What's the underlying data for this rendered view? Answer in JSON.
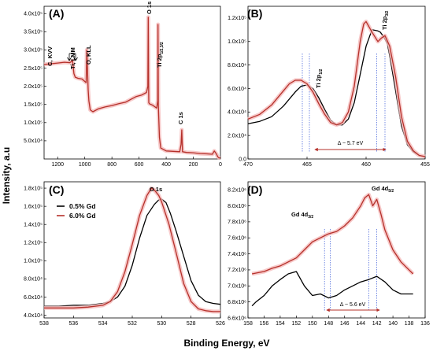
{
  "figure": {
    "ylabel": "Intensity, a.u",
    "xlabel": "Binding Energy, eV",
    "colors": {
      "gd05": "#000000",
      "gd60": "#b5302a",
      "highlight": "#f5bcbc",
      "marker": "#1a3fd1"
    }
  },
  "legend": {
    "items": [
      "0.5% Gd",
      "6.0% Gd"
    ]
  },
  "chart_data": [
    {
      "panel": "(A)",
      "type": "line",
      "xlim": [
        1300,
        0
      ],
      "ylim": [
        0,
        420000
      ],
      "xticks": [
        1200,
        1000,
        800,
        600,
        400,
        200,
        0
      ],
      "yticks": [
        50000,
        100000,
        150000,
        200000,
        250000,
        300000,
        350000,
        400000
      ],
      "ytick_labels": [
        "5.0x10⁴",
        "1.0x10⁵",
        "1.5x10⁵",
        "2.0x10⁵",
        "2.5x10⁵",
        "3.0x10⁵",
        "3.5x10⁵",
        "4.0x10⁵"
      ],
      "series": [
        {
          "name": "6.0% Gd",
          "x": [
            1300,
            1250,
            1200,
            1150,
            1110,
            1090,
            1080,
            1070,
            1050,
            1020,
            990,
            985,
            975,
            970,
            960,
            940,
            900,
            850,
            800,
            750,
            700,
            660,
            620,
            580,
            545,
            535,
            532,
            530,
            528,
            524,
            500,
            470,
            462,
            460,
            458,
            450,
            440,
            400,
            350,
            300,
            290,
            285,
            280,
            250,
            200,
            150,
            100,
            60,
            45,
            30,
            20,
            10,
            0
          ],
          "y": [
            260000,
            262000,
            264000,
            266000,
            265000,
            270000,
            235000,
            225000,
            222000,
            220000,
            210000,
            300000,
            190000,
            160000,
            135000,
            130000,
            138000,
            143000,
            147000,
            152000,
            156000,
            164000,
            172000,
            176000,
            183000,
            200000,
            390000,
            215000,
            155000,
            152000,
            148000,
            140000,
            160000,
            370000,
            150000,
            60000,
            30000,
            22000,
            21000,
            20000,
            40000,
            80000,
            20000,
            18000,
            17000,
            15000,
            14000,
            13000,
            22000,
            14000,
            6000,
            3000,
            3000
          ]
        }
      ],
      "annotations": [
        "C, KVV",
        "Ti, LMM",
        "O, KLL",
        "O 1s",
        "Ti 2p1/2,3/2",
        "C 1s"
      ]
    },
    {
      "panel": "(B)",
      "type": "line",
      "xlim": [
        470,
        455
      ],
      "ylim": [
        0,
        130000
      ],
      "xticks": [
        470,
        465,
        460,
        455
      ],
      "yticks": [
        0,
        20000,
        40000,
        60000,
        80000,
        100000,
        120000
      ],
      "ytick_labels": [
        "0.0",
        "2.0x10⁴",
        "4.0x10⁴",
        "6.0x10⁴",
        "8.0x10⁴",
        "1.0x10⁵",
        "1.2x10⁵"
      ],
      "series": [
        {
          "name": "0.5% Gd",
          "x": [
            470,
            469,
            468,
            467,
            466,
            465.5,
            465,
            464.5,
            464,
            463.5,
            463,
            462.5,
            462,
            461.5,
            461,
            460.5,
            460,
            459.5,
            459,
            458.8,
            458.5,
            458.2,
            458,
            457.5,
            457,
            456.5,
            456,
            455.5,
            455
          ],
          "y": [
            30000,
            32000,
            36000,
            45000,
            57000,
            62000,
            63000,
            60000,
            52000,
            42000,
            33000,
            29000,
            29000,
            34000,
            48000,
            72000,
            96000,
            110000,
            109000,
            108000,
            104000,
            98000,
            88000,
            58000,
            28000,
            12000,
            6000,
            3000,
            2000
          ]
        },
        {
          "name": "6.0% Gd",
          "x": [
            470,
            469,
            468,
            467,
            466.5,
            466,
            465.5,
            465,
            464.5,
            464,
            463.5,
            463,
            462.5,
            462,
            461.5,
            461,
            460.5,
            460.2,
            460,
            459.5,
            459,
            458.7,
            458.4,
            458,
            457.5,
            457,
            456.5,
            456,
            455.5,
            455
          ],
          "y": [
            34000,
            38000,
            46000,
            58000,
            64000,
            67000,
            67000,
            64000,
            57000,
            47000,
            38000,
            31000,
            29000,
            31000,
            40000,
            62000,
            100000,
            115000,
            117000,
            108000,
            100000,
            103000,
            105000,
            96000,
            70000,
            36000,
            15000,
            7000,
            3000,
            2000
          ]
        }
      ],
      "annotations": [
        "Ti 2p1/2",
        "Ti 2p3/2",
        "Δ ~ 5.7 eV"
      ]
    },
    {
      "panel": "(C)",
      "type": "line",
      "xlim": [
        538,
        526
      ],
      "ylim": [
        37000,
        187000
      ],
      "xticks": [
        538,
        536,
        534,
        532,
        530,
        528,
        526
      ],
      "yticks": [
        40000,
        60000,
        80000,
        100000,
        120000,
        140000,
        160000,
        180000
      ],
      "ytick_labels": [
        "4.0x10⁴",
        "6.0x10⁴",
        "8.0x10⁴",
        "1.0x10⁵",
        "1.2x10⁵",
        "1.4x10⁵",
        "1.6x10⁵",
        "1.8x10⁵"
      ],
      "series": [
        {
          "name": "0.5% Gd",
          "x": [
            538,
            537,
            536,
            535,
            534,
            533.5,
            533,
            532.5,
            532,
            531.5,
            531,
            530.5,
            530.2,
            530,
            529.7,
            529.4,
            529,
            528.5,
            528,
            527.5,
            527,
            526.5,
            526
          ],
          "y": [
            50000,
            50000,
            51000,
            51000,
            53000,
            55000,
            60000,
            72000,
            95000,
            125000,
            150000,
            162000,
            167000,
            168000,
            164000,
            152000,
            132000,
            105000,
            78000,
            62000,
            55000,
            53000,
            52000
          ]
        },
        {
          "name": "6.0% Gd",
          "x": [
            538,
            537,
            536,
            535,
            534,
            533.5,
            533,
            532.5,
            532,
            531.5,
            531,
            530.7,
            530.5,
            530.2,
            530,
            529.5,
            529,
            528.5,
            528,
            527.5,
            527,
            526.5,
            526
          ],
          "y": [
            48000,
            48000,
            48000,
            49000,
            51000,
            55000,
            66000,
            88000,
            118000,
            150000,
            172000,
            180000,
            178000,
            172000,
            165000,
            140000,
            108000,
            75000,
            55000,
            47000,
            45000,
            44000,
            44000
          ]
        }
      ],
      "annotations": [
        "O 1s"
      ]
    },
    {
      "panel": "(D)",
      "type": "line",
      "xlim": [
        158,
        136
      ],
      "ylim": [
        6600000,
        8300000
      ],
      "xticks": [
        158,
        156,
        154,
        152,
        150,
        148,
        146,
        144,
        142,
        140,
        138,
        136
      ],
      "yticks": [
        6600000,
        6800000,
        7000000,
        7200000,
        7400000,
        7600000,
        7800000,
        8000000,
        8200000
      ],
      "ytick_labels": [
        "6.6x10⁶",
        "6.8x10⁶",
        "7.0x10⁶",
        "7.2x10⁶",
        "7.4x10⁶",
        "7.6x10⁶",
        "7.8x10⁶",
        "8.0x10⁶",
        "8.2x10⁶"
      ],
      "series": [
        {
          "name": "0.5% Gd",
          "x": [
            157.5,
            157,
            156,
            155,
            154,
            153,
            152,
            151,
            150,
            149,
            148,
            147,
            146,
            145,
            144,
            143,
            142,
            141,
            140,
            139,
            138,
            137.5
          ],
          "y": [
            6750000,
            6800000,
            6880000,
            7000000,
            7080000,
            7150000,
            7180000,
            7000000,
            6880000,
            6900000,
            6850000,
            6880000,
            6950000,
            7000000,
            7050000,
            7080000,
            7120000,
            7050000,
            6950000,
            6900000,
            6900000,
            6900000
          ]
        },
        {
          "name": "6.0% Gd",
          "x": [
            157.5,
            157,
            156,
            155,
            154,
            153,
            152,
            151,
            150,
            149,
            148,
            147,
            146,
            145,
            144,
            143.5,
            143,
            142.5,
            142,
            141.5,
            141,
            140,
            139,
            138,
            137.5
          ],
          "y": [
            7150000,
            7160000,
            7180000,
            7220000,
            7250000,
            7300000,
            7350000,
            7450000,
            7550000,
            7600000,
            7650000,
            7680000,
            7750000,
            7850000,
            8000000,
            8100000,
            8140000,
            8000000,
            8080000,
            7900000,
            7700000,
            7450000,
            7300000,
            7200000,
            7150000
          ]
        }
      ],
      "annotations": [
        "Gd 4d3/2",
        "Gd 4d5/2",
        "Δ ~ 5.6 eV"
      ]
    }
  ],
  "labels": {
    "A": {
      "panel": "(A)",
      "ckvv": "C, KVV",
      "tilmm": "Ti, LMM",
      "okll": "O, KLL",
      "o1s": "O 1s",
      "ti2p": "Ti 2p",
      "ti2p_sub": "1/2,3/2",
      "c1s": "C 1s"
    },
    "B": {
      "panel": "(B)",
      "ti2p12": "Ti 2p",
      "ti2p12_sub": "1/2",
      "ti2p32": "Ti 2p",
      "ti2p32_sub": "3/2",
      "delta": "Δ ~ 5.7 eV"
    },
    "C": {
      "panel": "(C)",
      "o1s": "O 1s"
    },
    "D": {
      "panel": "(D)",
      "gd4d32": "Gd 4d",
      "gd4d32_sub": "3/2",
      "gd4d52": "Gd 4d",
      "gd4d52_sub": "5/2",
      "delta": "Δ ~ 5.6 eV"
    }
  }
}
